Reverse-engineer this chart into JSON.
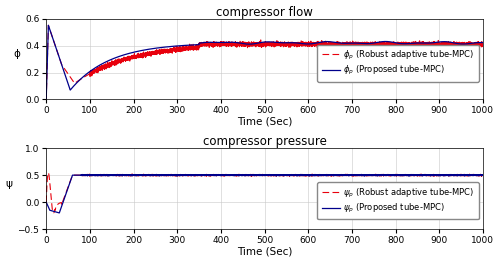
{
  "title_flow": "compressor flow",
  "title_pressure": "compressor pressure",
  "xlabel": "Time (Sec)",
  "ylabel_flow": "ϕ",
  "ylabel_pressure": "ψ",
  "xlim": [
    0,
    1000
  ],
  "ylim_flow": [
    0,
    0.6
  ],
  "ylim_pressure": [
    -0.5,
    1
  ],
  "xticks": [
    0,
    100,
    200,
    300,
    400,
    500,
    600,
    700,
    800,
    900,
    1000
  ],
  "yticks_flow": [
    0,
    0.2,
    0.4,
    0.6
  ],
  "yticks_pressure": [
    -0.5,
    0,
    0.5,
    1
  ],
  "color_robust": "#E8000D",
  "color_proposed": "#00008B",
  "background_color": "#FFFFFF",
  "title_fontsize": 8.5,
  "label_fontsize": 7.5,
  "tick_fontsize": 6.5,
  "legend_fontsize": 6.0,
  "figsize": [
    5.0,
    2.62
  ],
  "dpi": 100
}
